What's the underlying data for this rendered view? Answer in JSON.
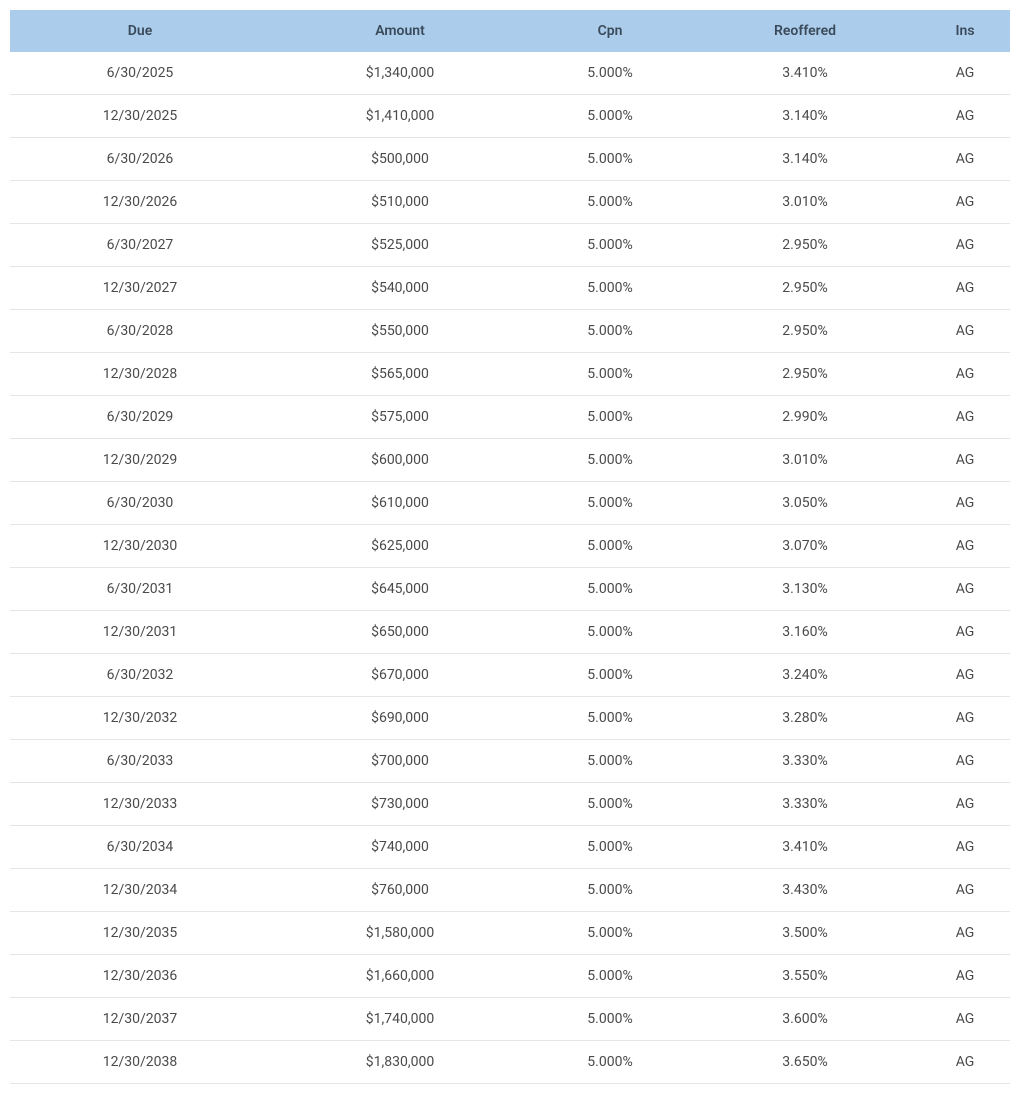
{
  "table": {
    "columns": [
      {
        "key": "due",
        "label": "Due",
        "class": "col-due"
      },
      {
        "key": "amount",
        "label": "Amount",
        "class": "col-amount"
      },
      {
        "key": "cpn",
        "label": "Cpn",
        "class": "col-cpn"
      },
      {
        "key": "reoffered",
        "label": "Reoffered",
        "class": "col-reoffered"
      },
      {
        "key": "ins",
        "label": "Ins",
        "class": "col-ins"
      }
    ],
    "rows": [
      {
        "due": "6/30/2025",
        "amount": "$1,340,000",
        "cpn": "5.000%",
        "reoffered": "3.410%",
        "ins": "AG"
      },
      {
        "due": "12/30/2025",
        "amount": "$1,410,000",
        "cpn": "5.000%",
        "reoffered": "3.140%",
        "ins": "AG"
      },
      {
        "due": "6/30/2026",
        "amount": "$500,000",
        "cpn": "5.000%",
        "reoffered": "3.140%",
        "ins": "AG"
      },
      {
        "due": "12/30/2026",
        "amount": "$510,000",
        "cpn": "5.000%",
        "reoffered": "3.010%",
        "ins": "AG"
      },
      {
        "due": "6/30/2027",
        "amount": "$525,000",
        "cpn": "5.000%",
        "reoffered": "2.950%",
        "ins": "AG"
      },
      {
        "due": "12/30/2027",
        "amount": "$540,000",
        "cpn": "5.000%",
        "reoffered": "2.950%",
        "ins": "AG"
      },
      {
        "due": "6/30/2028",
        "amount": "$550,000",
        "cpn": "5.000%",
        "reoffered": "2.950%",
        "ins": "AG"
      },
      {
        "due": "12/30/2028",
        "amount": "$565,000",
        "cpn": "5.000%",
        "reoffered": "2.950%",
        "ins": "AG"
      },
      {
        "due": "6/30/2029",
        "amount": "$575,000",
        "cpn": "5.000%",
        "reoffered": "2.990%",
        "ins": "AG"
      },
      {
        "due": "12/30/2029",
        "amount": "$600,000",
        "cpn": "5.000%",
        "reoffered": "3.010%",
        "ins": "AG"
      },
      {
        "due": "6/30/2030",
        "amount": "$610,000",
        "cpn": "5.000%",
        "reoffered": "3.050%",
        "ins": "AG"
      },
      {
        "due": "12/30/2030",
        "amount": "$625,000",
        "cpn": "5.000%",
        "reoffered": "3.070%",
        "ins": "AG"
      },
      {
        "due": "6/30/2031",
        "amount": "$645,000",
        "cpn": "5.000%",
        "reoffered": "3.130%",
        "ins": "AG"
      },
      {
        "due": "12/30/2031",
        "amount": "$650,000",
        "cpn": "5.000%",
        "reoffered": "3.160%",
        "ins": "AG"
      },
      {
        "due": "6/30/2032",
        "amount": "$670,000",
        "cpn": "5.000%",
        "reoffered": "3.240%",
        "ins": "AG"
      },
      {
        "due": "12/30/2032",
        "amount": "$690,000",
        "cpn": "5.000%",
        "reoffered": "3.280%",
        "ins": "AG"
      },
      {
        "due": "6/30/2033",
        "amount": "$700,000",
        "cpn": "5.000%",
        "reoffered": "3.330%",
        "ins": "AG"
      },
      {
        "due": "12/30/2033",
        "amount": "$730,000",
        "cpn": "5.000%",
        "reoffered": "3.330%",
        "ins": "AG"
      },
      {
        "due": "6/30/2034",
        "amount": "$740,000",
        "cpn": "5.000%",
        "reoffered": "3.410%",
        "ins": "AG"
      },
      {
        "due": "12/30/2034",
        "amount": "$760,000",
        "cpn": "5.000%",
        "reoffered": "3.430%",
        "ins": "AG"
      },
      {
        "due": "12/30/2035",
        "amount": "$1,580,000",
        "cpn": "5.000%",
        "reoffered": "3.500%",
        "ins": "AG"
      },
      {
        "due": "12/30/2036",
        "amount": "$1,660,000",
        "cpn": "5.000%",
        "reoffered": "3.550%",
        "ins": "AG"
      },
      {
        "due": "12/30/2037",
        "amount": "$1,740,000",
        "cpn": "5.000%",
        "reoffered": "3.600%",
        "ins": "AG"
      },
      {
        "due": "12/30/2038",
        "amount": "$1,830,000",
        "cpn": "5.000%",
        "reoffered": "3.650%",
        "ins": "AG"
      }
    ],
    "header_bg_color": "#abcdeb",
    "header_text_color": "#3a4a5a",
    "body_text_color": "#4a4a4a",
    "border_color": "#e5e5e5",
    "font_size": 14
  }
}
